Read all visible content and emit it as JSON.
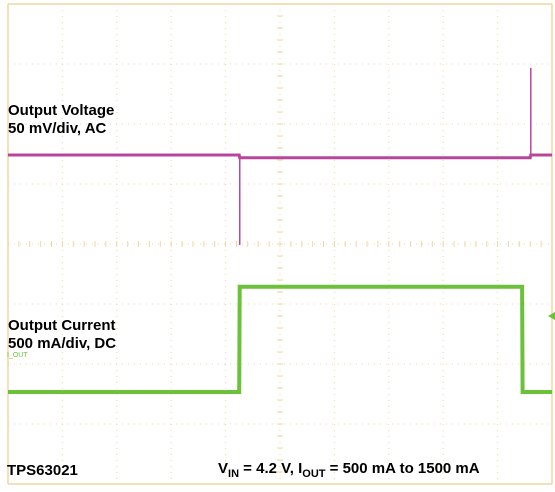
{
  "labels": {
    "ch1_title": "Output Voltage",
    "ch1_scale": "50 mV/div, AC",
    "ch2_title": "Output Current",
    "ch2_scale": "500 mA/div, DC",
    "device": "TPS63021",
    "cond_v": "V",
    "cond_v_sub": "IN",
    "cond_mid": " = 4.2 V, I",
    "cond_i_sub": "OUT",
    "cond_end": " = 500 mA to 1500 mA"
  },
  "channel_marker": "I_OUT",
  "chart_data": {
    "type": "line",
    "title": "",
    "grid": true,
    "grid_divisions": {
      "x": 10,
      "y": 8
    },
    "colors": {
      "grid": "#f4d6a2",
      "voltage": "#b8479c",
      "current": "#6bc13a"
    },
    "series": [
      {
        "name": "Output Voltage",
        "scale": "50 mV/div, AC",
        "x_div": [
          0,
          0.1,
          4.25,
          4.26,
          9.6,
          9.61,
          10
        ],
        "y_div": [
          0,
          0,
          0,
          -0.1,
          -0.1,
          0,
          0
        ],
        "transients": [
          {
            "x_div": 4.26,
            "peak_div": -2.4
          },
          {
            "x_div": 9.61,
            "peak_div": 2.1
          }
        ]
      },
      {
        "name": "Output Current",
        "scale": "500 mA/div, DC",
        "x_div": [
          0,
          4.25,
          4.26,
          9.45,
          9.46,
          10
        ],
        "y_div": [
          1,
          1,
          3,
          3,
          1,
          1
        ],
        "currents_mA": [
          500,
          500,
          1500,
          1500,
          500,
          500
        ]
      }
    ]
  }
}
